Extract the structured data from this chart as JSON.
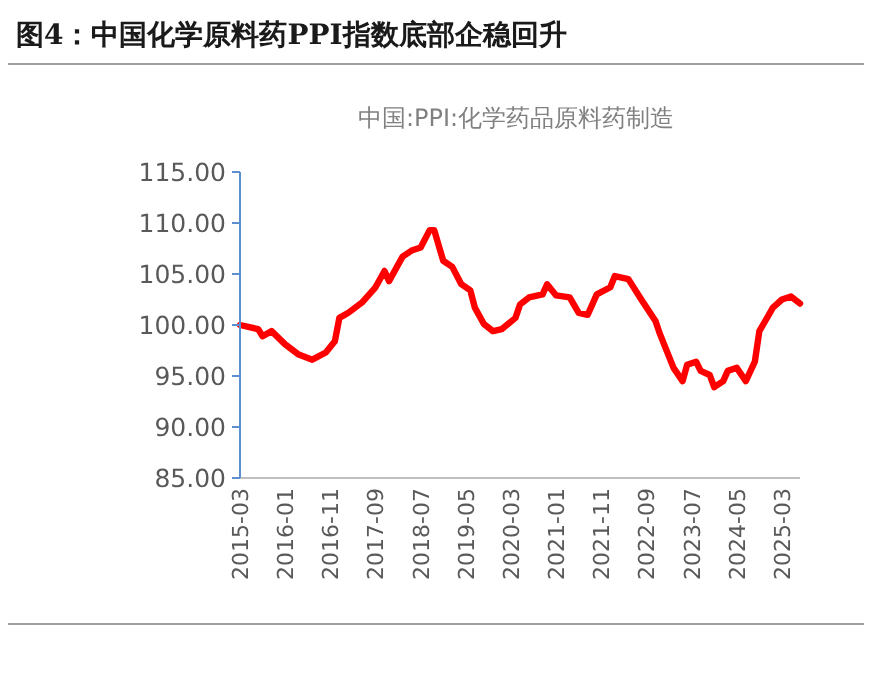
{
  "chart_data": {
    "type": "line",
    "title": "图4：中国化学原料药PPI指数底部企稳回升",
    "subtitle": "中国:PPI:化学药品原料药制造",
    "x": [
      "2015-03",
      "2015-07",
      "2015-08",
      "2015-10",
      "2016-01",
      "2016-04",
      "2016-07",
      "2016-10",
      "2016-12",
      "2017-01",
      "2017-03",
      "2017-06",
      "2017-09",
      "2017-11",
      "2017-12",
      "2018-03",
      "2018-05",
      "2018-07",
      "2018-09",
      "2018-10",
      "2018-12",
      "2019-02",
      "2019-04",
      "2019-06",
      "2019-07",
      "2019-09",
      "2019-11",
      "2020-01",
      "2020-04",
      "2020-05",
      "2020-07",
      "2020-10",
      "2020-11",
      "2021-01",
      "2021-04",
      "2021-06",
      "2021-08",
      "2021-10",
      "2022-01",
      "2022-02",
      "2022-05",
      "2022-08",
      "2022-11",
      "2022-12",
      "2023-03",
      "2023-05",
      "2023-06",
      "2023-08",
      "2023-09",
      "2023-11",
      "2023-12",
      "2024-02",
      "2024-03",
      "2024-05",
      "2024-07",
      "2024-09",
      "2024-10",
      "2025-01",
      "2025-03",
      "2025-05",
      "2025-07"
    ],
    "series": [
      {
        "color": "#ff0000",
        "values": [
          100.0,
          99.6,
          98.9,
          99.4,
          98.1,
          97.1,
          96.6,
          97.3,
          98.4,
          100.7,
          101.2,
          102.2,
          103.7,
          105.3,
          104.3,
          106.7,
          107.3,
          107.6,
          109.3,
          109.3,
          106.3,
          105.7,
          104.0,
          103.4,
          101.7,
          100.1,
          99.4,
          99.6,
          100.7,
          102.0,
          102.7,
          103.0,
          104.0,
          102.9,
          102.7,
          101.2,
          101.0,
          103.0,
          103.7,
          104.8,
          104.5,
          102.4,
          100.4,
          99.1,
          95.8,
          94.5,
          96.1,
          96.4,
          95.5,
          95.1,
          93.9,
          94.5,
          95.5,
          95.8,
          94.5,
          96.4,
          99.4,
          101.7,
          102.5,
          102.8,
          102.1
        ]
      }
    ],
    "xlim": [
      "2015-03",
      "2025-07"
    ],
    "xticks": [
      "2015-03",
      "2016-01",
      "2016-11",
      "2017-09",
      "2018-07",
      "2019-05",
      "2020-03",
      "2021-01",
      "2021-11",
      "2022-09",
      "2023-07",
      "2024-05",
      "2025-03"
    ],
    "ylim": [
      85,
      115
    ],
    "yticks": [
      {
        "value": 85,
        "label": "85.00"
      },
      {
        "value": 90,
        "label": "90.00"
      },
      {
        "value": 95,
        "label": "95.00"
      },
      {
        "value": 100,
        "label": "100.00"
      },
      {
        "value": 105,
        "label": "105.00"
      },
      {
        "value": 110,
        "label": "110.00"
      },
      {
        "value": 115,
        "label": "115.00"
      }
    ],
    "grid": false,
    "marker": "none",
    "line_style": "solid"
  }
}
